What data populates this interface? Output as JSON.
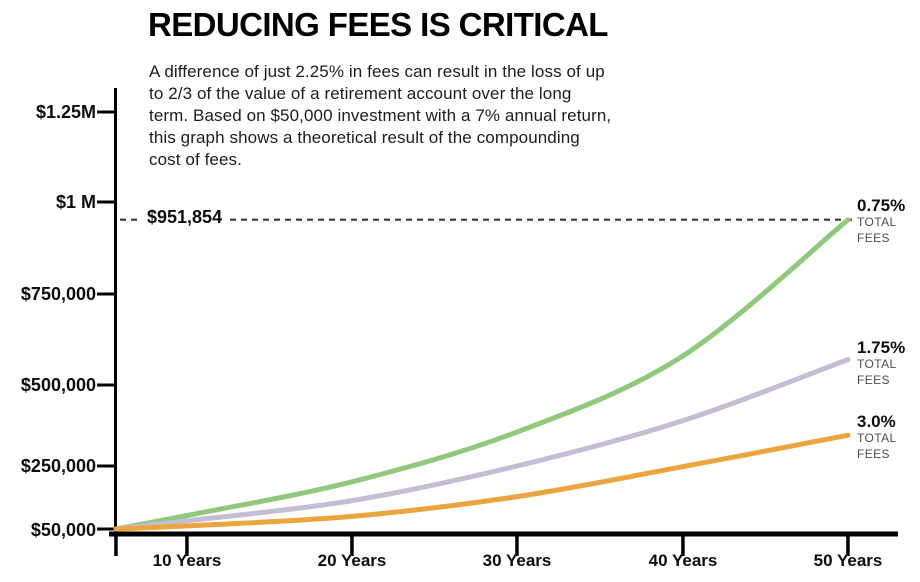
{
  "header": {
    "title": "REDUCING FEES IS CRITICAL",
    "description_lines": [
      "A difference of just 2.25% in fees can result in the loss of up",
      "to 2/3 of the value of a retirement account over the long",
      "term. Based on $50,000 investment with a 7% annual return,",
      "this graph shows a theoretical result of the compounding",
      "cost of fees."
    ]
  },
  "chart_data": {
    "type": "line",
    "title": "REDUCING FEES IS CRITICAL",
    "x_unit": "Years",
    "x": [
      10,
      20,
      30,
      40,
      50
    ],
    "x_tick_labels": [
      "10 Years",
      "20 Years",
      "30 Years",
      "40 Years",
      "50 Years"
    ],
    "y_tick_labels": [
      "$1.25M",
      "$1 M",
      "$750,000",
      "$500,000",
      "$250,000",
      "$50,000"
    ],
    "y_tick_values": [
      1250000,
      1000000,
      750000,
      500000,
      250000,
      50000
    ],
    "ylim": [
      50000,
      1250000
    ],
    "grid": false,
    "legend_position": "right of line ends",
    "start_value": 50000,
    "annotation": {
      "label": "$951,854",
      "value": 951854,
      "style": "dashed-horizontal-line"
    },
    "axis_color": "#000000",
    "dashed_line_color": "#3a3a3a",
    "series": [
      {
        "name": "0.75% TOTAL FEES",
        "pct": "0.75%",
        "sub_lines": [
          "TOTAL",
          "FEES"
        ],
        "color": "#90C87C",
        "values": [
          93000,
          200000,
          355000,
          580000,
          951854
        ]
      },
      {
        "name": "1.75% TOTAL FEES",
        "pct": "1.75%",
        "sub_lines": [
          "TOTAL",
          "FEES"
        ],
        "color": "#C4BDD3",
        "values": [
          76000,
          140000,
          250000,
          390000,
          570000
        ]
      },
      {
        "name": "3.0% TOTAL FEES",
        "pct": "3.0%",
        "sub_lines": [
          "TOTAL",
          "FEES"
        ],
        "color": "#EBA53F",
        "values": [
          60000,
          90000,
          153000,
          248000,
          345000
        ]
      }
    ]
  }
}
